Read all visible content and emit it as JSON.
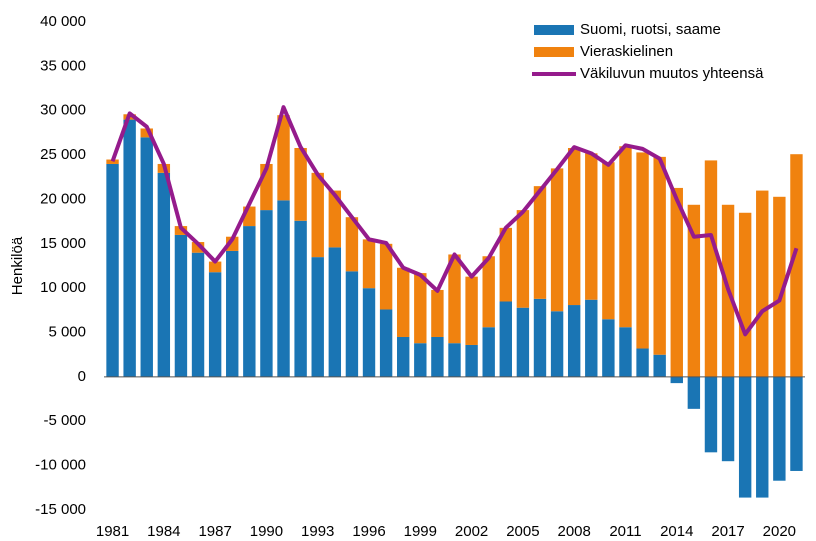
{
  "chart_data": {
    "type": "bar",
    "stacked": true,
    "y_label": "Henkilöä",
    "categories": [
      "1981",
      null,
      null,
      "1984",
      null,
      null,
      "1987",
      null,
      null,
      "1990",
      null,
      null,
      "1993",
      null,
      null,
      "1996",
      null,
      null,
      "1999",
      null,
      null,
      "2002",
      null,
      null,
      "2005",
      null,
      null,
      "2008",
      null,
      null,
      "2011",
      null,
      null,
      "2014",
      null,
      null,
      "2017",
      null,
      null,
      "2020",
      null
    ],
    "series": [
      {
        "name": "Suomi, ruotsi, saame",
        "color": "#1a75b4",
        "type": "bar",
        "values": [
          24000,
          29000,
          27000,
          23000,
          16000,
          14000,
          11800,
          14200,
          17000,
          18800,
          19900,
          17600,
          13500,
          14600,
          11900,
          10000,
          7600,
          4500,
          3800,
          4500,
          3800,
          3600,
          5600,
          8500,
          7800,
          8800,
          7400,
          8100,
          8700,
          6500,
          5600,
          3200,
          2500,
          -700,
          -3600,
          -8500,
          -9500,
          -13600,
          -13600,
          -11700,
          -10600
        ]
      },
      {
        "name": "Vieraskielinen",
        "color": "#f0820f",
        "type": "bar",
        "values": [
          500,
          600,
          1000,
          1000,
          1000,
          1200,
          1200,
          1600,
          2200,
          5200,
          9600,
          8200,
          9500,
          6400,
          6100,
          5500,
          7400,
          7800,
          7900,
          5300,
          10000,
          7700,
          8000,
          8300,
          11000,
          12700,
          16100,
          17700,
          16500,
          17700,
          20400,
          22100,
          22300,
          21300,
          19400,
          24400,
          19400,
          18500,
          21000,
          20300,
          25100
        ]
      },
      {
        "name": "Väkiluvun muutos yhteensä",
        "color": "#951b8c",
        "type": "line",
        "values": [
          24300,
          29700,
          28200,
          24000,
          16800,
          15000,
          13000,
          15500,
          19500,
          23500,
          30400,
          25900,
          22800,
          20500,
          18000,
          15500,
          15100,
          12300,
          11500,
          9700,
          13800,
          11300,
          13400,
          16800,
          18600,
          21000,
          23400,
          25900,
          25200,
          23900,
          26100,
          25700,
          24600,
          20000,
          15800,
          16000,
          9900,
          4800,
          7400,
          8600,
          14500
        ]
      }
    ],
    "ylim": [
      -15000,
      40000
    ],
    "yticks": [
      {
        "value": -15000,
        "label": "-15 000"
      },
      {
        "value": -10000,
        "label": "-10 000"
      },
      {
        "value": -5000,
        "label": "-5 000"
      },
      0,
      {
        "value": 5000,
        "label": "5 000"
      },
      {
        "value": 10000,
        "label": "10 000"
      },
      {
        "value": 15000,
        "label": "15 000"
      },
      {
        "value": 20000,
        "label": "20 000"
      },
      {
        "value": 25000,
        "label": "25 000"
      },
      {
        "value": 30000,
        "label": "30 000"
      },
      {
        "value": 35000,
        "label": "35 000"
      },
      {
        "value": 40000,
        "label": "40 000"
      }
    ],
    "grid": false,
    "legend": "top-right"
  }
}
